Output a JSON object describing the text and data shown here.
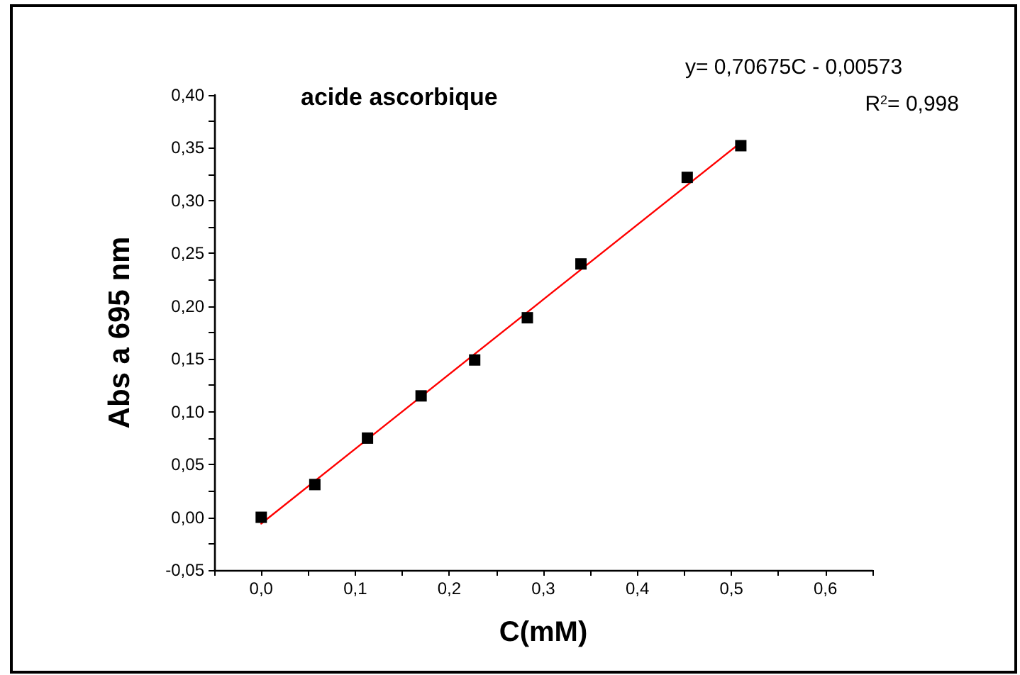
{
  "chart_data": {
    "type": "scatter",
    "title": "acide ascorbique",
    "xlabel": "C(mM)",
    "ylabel": "Abs a 695 nm",
    "annotations": [
      "y= 0,70675C - 0,00573",
      "R$^{2}$= 0,998"
    ],
    "series": [
      {
        "color": "#000000",
        "marker": "square",
        "x": [
          0,
          0.057,
          0.113,
          0.17,
          0.227,
          0.283,
          0.34,
          0.453,
          0.51
        ],
        "values": [
          0,
          0.031,
          0.075,
          0.115,
          0.149,
          0.189,
          0.24,
          0.322,
          0.352
        ]
      },
      {
        "type": "line",
        "color": "#ff0000",
        "marker": "none",
        "line_style": "solid",
        "x": [
          0,
          0.51
        ],
        "values": [
          -0.006,
          0.355
        ]
      }
    ],
    "xlim": [
      -0.05,
      0.65
    ],
    "xticks": [
      {
        "value": -0.05,
        "label": null
      },
      {
        "value": 0,
        "label": "0,0"
      },
      {
        "value": 0.05,
        "label": null
      },
      {
        "value": 0.1,
        "label": "0,1"
      },
      {
        "value": 0.15,
        "label": null
      },
      {
        "value": 0.2,
        "label": "0,2"
      },
      {
        "value": 0.25,
        "label": null
      },
      {
        "value": 0.3,
        "label": "0,3"
      },
      {
        "value": 0.35,
        "label": null
      },
      {
        "value": 0.4,
        "label": "0,4"
      },
      {
        "value": 0.45,
        "label": null
      },
      {
        "value": 0.5,
        "label": "0,5"
      },
      {
        "value": 0.55,
        "label": null
      },
      {
        "value": 0.6,
        "label": "0,6"
      },
      {
        "value": 0.65,
        "label": null
      }
    ],
    "ylim": [
      -0.05,
      0.4
    ],
    "yticks": [
      {
        "value": -0.05,
        "label": "-0,05"
      },
      {
        "value": -0.025,
        "label": null
      },
      {
        "value": 0,
        "label": "0,00"
      },
      {
        "value": 0.025,
        "label": null
      },
      {
        "value": 0.05,
        "label": "0,05"
      },
      {
        "value": 0.075,
        "label": null
      },
      {
        "value": 0.1,
        "label": "0,10"
      },
      {
        "value": 0.125,
        "label": null
      },
      {
        "value": 0.15,
        "label": "0,15"
      },
      {
        "value": 0.175,
        "label": null
      },
      {
        "value": 0.2,
        "label": "0,20"
      },
      {
        "value": 0.225,
        "label": null
      },
      {
        "value": 0.25,
        "label": "0,25"
      },
      {
        "value": 0.275,
        "label": null
      },
      {
        "value": 0.3,
        "label": "0,30"
      },
      {
        "value": 0.325,
        "label": null
      },
      {
        "value": 0.35,
        "label": "0,35"
      },
      {
        "value": 0.375,
        "label": null
      },
      {
        "value": 0.4,
        "label": "0,40"
      }
    ]
  }
}
